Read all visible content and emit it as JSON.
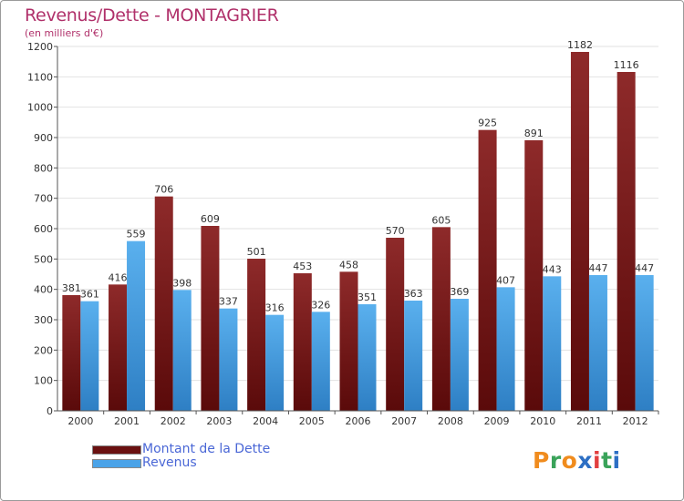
{
  "title": "Revenus/Dette - MONTAGRIER",
  "subtitle": "(en milliers d'€)",
  "colors": {
    "title": "#b0306a",
    "dette": "#7a1a1a",
    "revenus": "#4aa3e8",
    "legend_text": "#4a67d6"
  },
  "chart_data": {
    "type": "bar",
    "title": "Revenus/Dette - MONTAGRIER",
    "subtitle": "(en milliers d'€)",
    "categories": [
      "2000",
      "2001",
      "2002",
      "2003",
      "2004",
      "2005",
      "2006",
      "2007",
      "2008",
      "2009",
      "2010",
      "2011",
      "2012"
    ],
    "series": [
      {
        "name": "Montant de la Dette",
        "values": [
          381,
          416,
          706,
          609,
          501,
          453,
          458,
          570,
          605,
          925,
          891,
          1182,
          1116
        ]
      },
      {
        "name": "Revenus",
        "values": [
          361,
          559,
          398,
          337,
          316,
          326,
          351,
          363,
          369,
          407,
          443,
          447,
          447
        ]
      }
    ],
    "ylim": [
      0,
      1200
    ],
    "yticks": [
      0,
      100,
      200,
      300,
      400,
      500,
      600,
      700,
      800,
      900,
      1000,
      1100,
      1200
    ],
    "grid": true,
    "legend": "bottom-left"
  },
  "legend": {
    "dette_label": "Montant de la Dette",
    "revenus_label": "Revenus"
  },
  "logo": {
    "letters": [
      "P",
      "r",
      "o",
      "x",
      "i",
      "t",
      "i"
    ],
    "colors": [
      "#f08c1e",
      "#3aa35a",
      "#f08c1e",
      "#2d6fc4",
      "#e23f3f",
      "#3aa35a",
      "#2d6fc4"
    ]
  }
}
